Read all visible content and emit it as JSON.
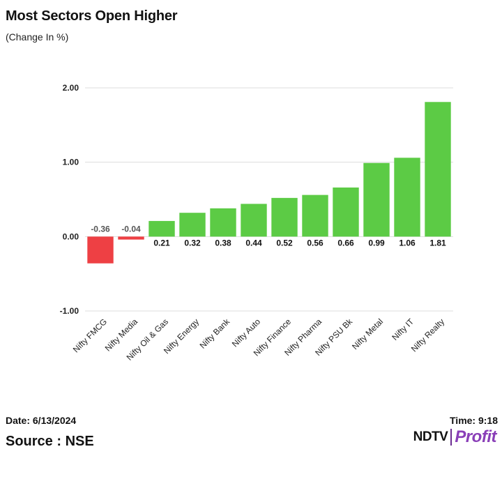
{
  "header": {
    "title": "Most Sectors Open Higher",
    "subtitle": "(Change In %)"
  },
  "footer": {
    "date": "Date: 6/13/2024",
    "time": "Time: 9:18",
    "source": "Source : NSE",
    "logo_main": "NDTV",
    "logo_sub": "Profit"
  },
  "colors": {
    "positive": "#5ccb45",
    "negative": "#ee4044",
    "grid": "#dddddd",
    "text": "#111111"
  },
  "chart_data": {
    "type": "bar",
    "categories": [
      "Nifty FMCG",
      "Nifty Media",
      "Nifty Oil & Gas",
      "Nifty Energy",
      "Nifty Bank",
      "Nifty Auto",
      "Nifty Finance",
      "Nifty Pharma",
      "Nifty PSU Bk",
      "Nifty Metal",
      "Nifty IT",
      "Nifty Realty"
    ],
    "values": [
      -0.36,
      -0.04,
      0.21,
      0.32,
      0.38,
      0.44,
      0.52,
      0.56,
      0.66,
      0.99,
      1.06,
      1.81
    ],
    "value_labels": [
      "-0.36",
      "-0.04",
      "0.21",
      "0.32",
      "0.38",
      "0.44",
      "0.52",
      "0.56",
      "0.66",
      "0.99",
      "1.06",
      "1.81"
    ],
    "ylim": [
      -1,
      2
    ],
    "yticks": [
      "2.00",
      "1.00",
      "0.00",
      "-1.00"
    ],
    "ytick_values": [
      2,
      1,
      0,
      -1
    ],
    "grid": true,
    "legend": false
  }
}
